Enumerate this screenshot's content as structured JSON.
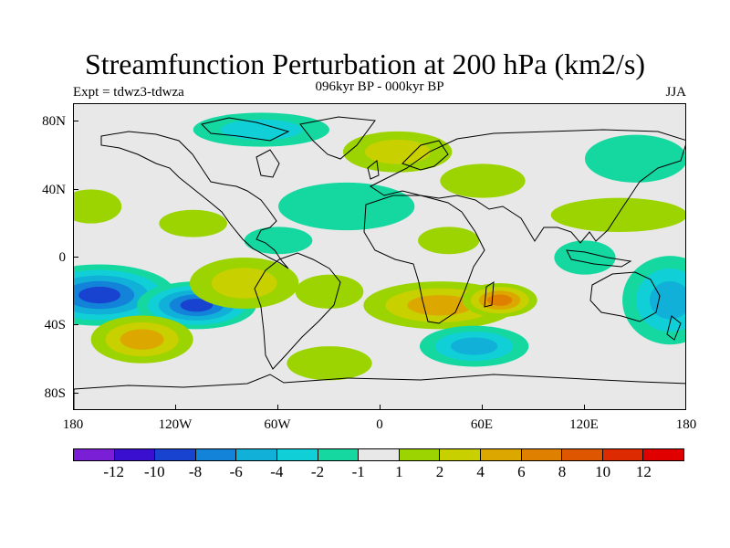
{
  "title": "Streamfunction Perturbation at 200 hPa (km2/s)",
  "experiment": "Expt = tdwz3-tdwza",
  "period": "096kyr BP - 000kyr BP",
  "season": "JJA",
  "lat_labels": [
    "80N",
    "40N",
    "0",
    "40S",
    "80S"
  ],
  "lon_labels": [
    "180",
    "120W",
    "60W",
    "0",
    "60E",
    "120E",
    "180"
  ],
  "colorbar": {
    "labels": [
      "-12",
      "-10",
      "-8",
      "-6",
      "-4",
      "-2",
      "-1",
      "1",
      "2",
      "4",
      "6",
      "8",
      "10",
      "12"
    ],
    "colors": [
      "#7b1fd6",
      "#3a0fd0",
      "#1743d0",
      "#1283d8",
      "#10b0d8",
      "#10cfd6",
      "#14d8a0",
      "#e8e8e8",
      "#9bd400",
      "#c9d000",
      "#dca800",
      "#e08000",
      "#de5600",
      "#dd2a00",
      "#e00000"
    ]
  },
  "field_blobs": [
    {
      "lon": -165,
      "lat": -22,
      "rlon": 45,
      "rlat": 18,
      "value": -9
    },
    {
      "lon": -108,
      "lat": -28,
      "rlon": 35,
      "rlat": 14,
      "value": -9
    },
    {
      "lon": -140,
      "lat": -48,
      "rlon": 30,
      "rlat": 14,
      "value": 5
    },
    {
      "lon": -80,
      "lat": -15,
      "rlon": 32,
      "rlat": 15,
      "value": 4
    },
    {
      "lon": 35,
      "lat": -28,
      "rlon": 45,
      "rlat": 14,
      "value": 6
    },
    {
      "lon": 70,
      "lat": -25,
      "rlon": 22,
      "rlat": 10,
      "value": 7
    },
    {
      "lon": 55,
      "lat": -52,
      "rlon": 32,
      "rlat": 12,
      "value": -5
    },
    {
      "lon": 170,
      "lat": -25,
      "rlon": 28,
      "rlat": 26,
      "value": -6
    },
    {
      "lon": 10,
      "lat": 62,
      "rlon": 32,
      "rlat": 12,
      "value": 4
    },
    {
      "lon": -70,
      "lat": 75,
      "rlon": 40,
      "rlat": 10,
      "value": -3
    },
    {
      "lon": -20,
      "lat": 30,
      "rlon": 40,
      "rlat": 14,
      "value": -2
    },
    {
      "lon": 150,
      "lat": 58,
      "rlon": 30,
      "rlat": 14,
      "value": -2
    },
    {
      "lon": 120,
      "lat": 0,
      "rlon": 18,
      "rlat": 10,
      "value": -2
    },
    {
      "lon": -60,
      "lat": 10,
      "rlon": 20,
      "rlat": 8,
      "value": -2
    },
    {
      "lon": 140,
      "lat": 25,
      "rlon": 40,
      "rlat": 10,
      "value": 2
    },
    {
      "lon": -170,
      "lat": 30,
      "rlon": 18,
      "rlat": 10,
      "value": 2
    },
    {
      "lon": -110,
      "lat": 20,
      "rlon": 20,
      "rlat": 8,
      "value": 2
    },
    {
      "lon": 60,
      "lat": 45,
      "rlon": 25,
      "rlat": 10,
      "value": 2
    },
    {
      "lon": 40,
      "lat": 10,
      "rlon": 18,
      "rlat": 8,
      "value": 2
    },
    {
      "lon": -30,
      "lat": -62,
      "rlon": 25,
      "rlat": 10,
      "value": 2
    },
    {
      "lon": -30,
      "lat": -20,
      "rlon": 20,
      "rlat": 10,
      "value": 2
    }
  ]
}
